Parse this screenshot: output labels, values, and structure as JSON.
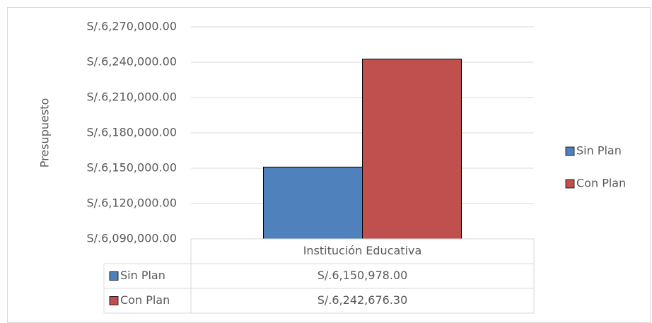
{
  "chart_data": {
    "type": "bar",
    "y_label": "Presupuesto",
    "categories": [
      "Institución Educativa"
    ],
    "series": [
      {
        "name": "Sin Plan",
        "color": "#4f81bd",
        "values": [
          6150978
        ],
        "value_labels": [
          "S/.6,150,978.00"
        ]
      },
      {
        "name": "Con Plan",
        "color": "#c0504d",
        "values": [
          6242676.3
        ],
        "value_labels": [
          "S/.6,242,676.30"
        ]
      }
    ],
    "ylim": [
      6090000,
      6270000
    ],
    "yticks": [
      {
        "value": 6090000,
        "label": "S/.6,090,000.00"
      },
      {
        "value": 6120000,
        "label": "S/.6,120,000.00"
      },
      {
        "value": 6150000,
        "label": "S/.6,150,000.00"
      },
      {
        "value": 6180000,
        "label": "S/.6,180,000.00"
      },
      {
        "value": 6210000,
        "label": "S/.6,210,000.00"
      },
      {
        "value": 6240000,
        "label": "S/.6,240,000.00"
      },
      {
        "value": 6270000,
        "label": "S/.6,270,000.00"
      }
    ],
    "grid": true,
    "legend": "right",
    "data_table": true
  }
}
